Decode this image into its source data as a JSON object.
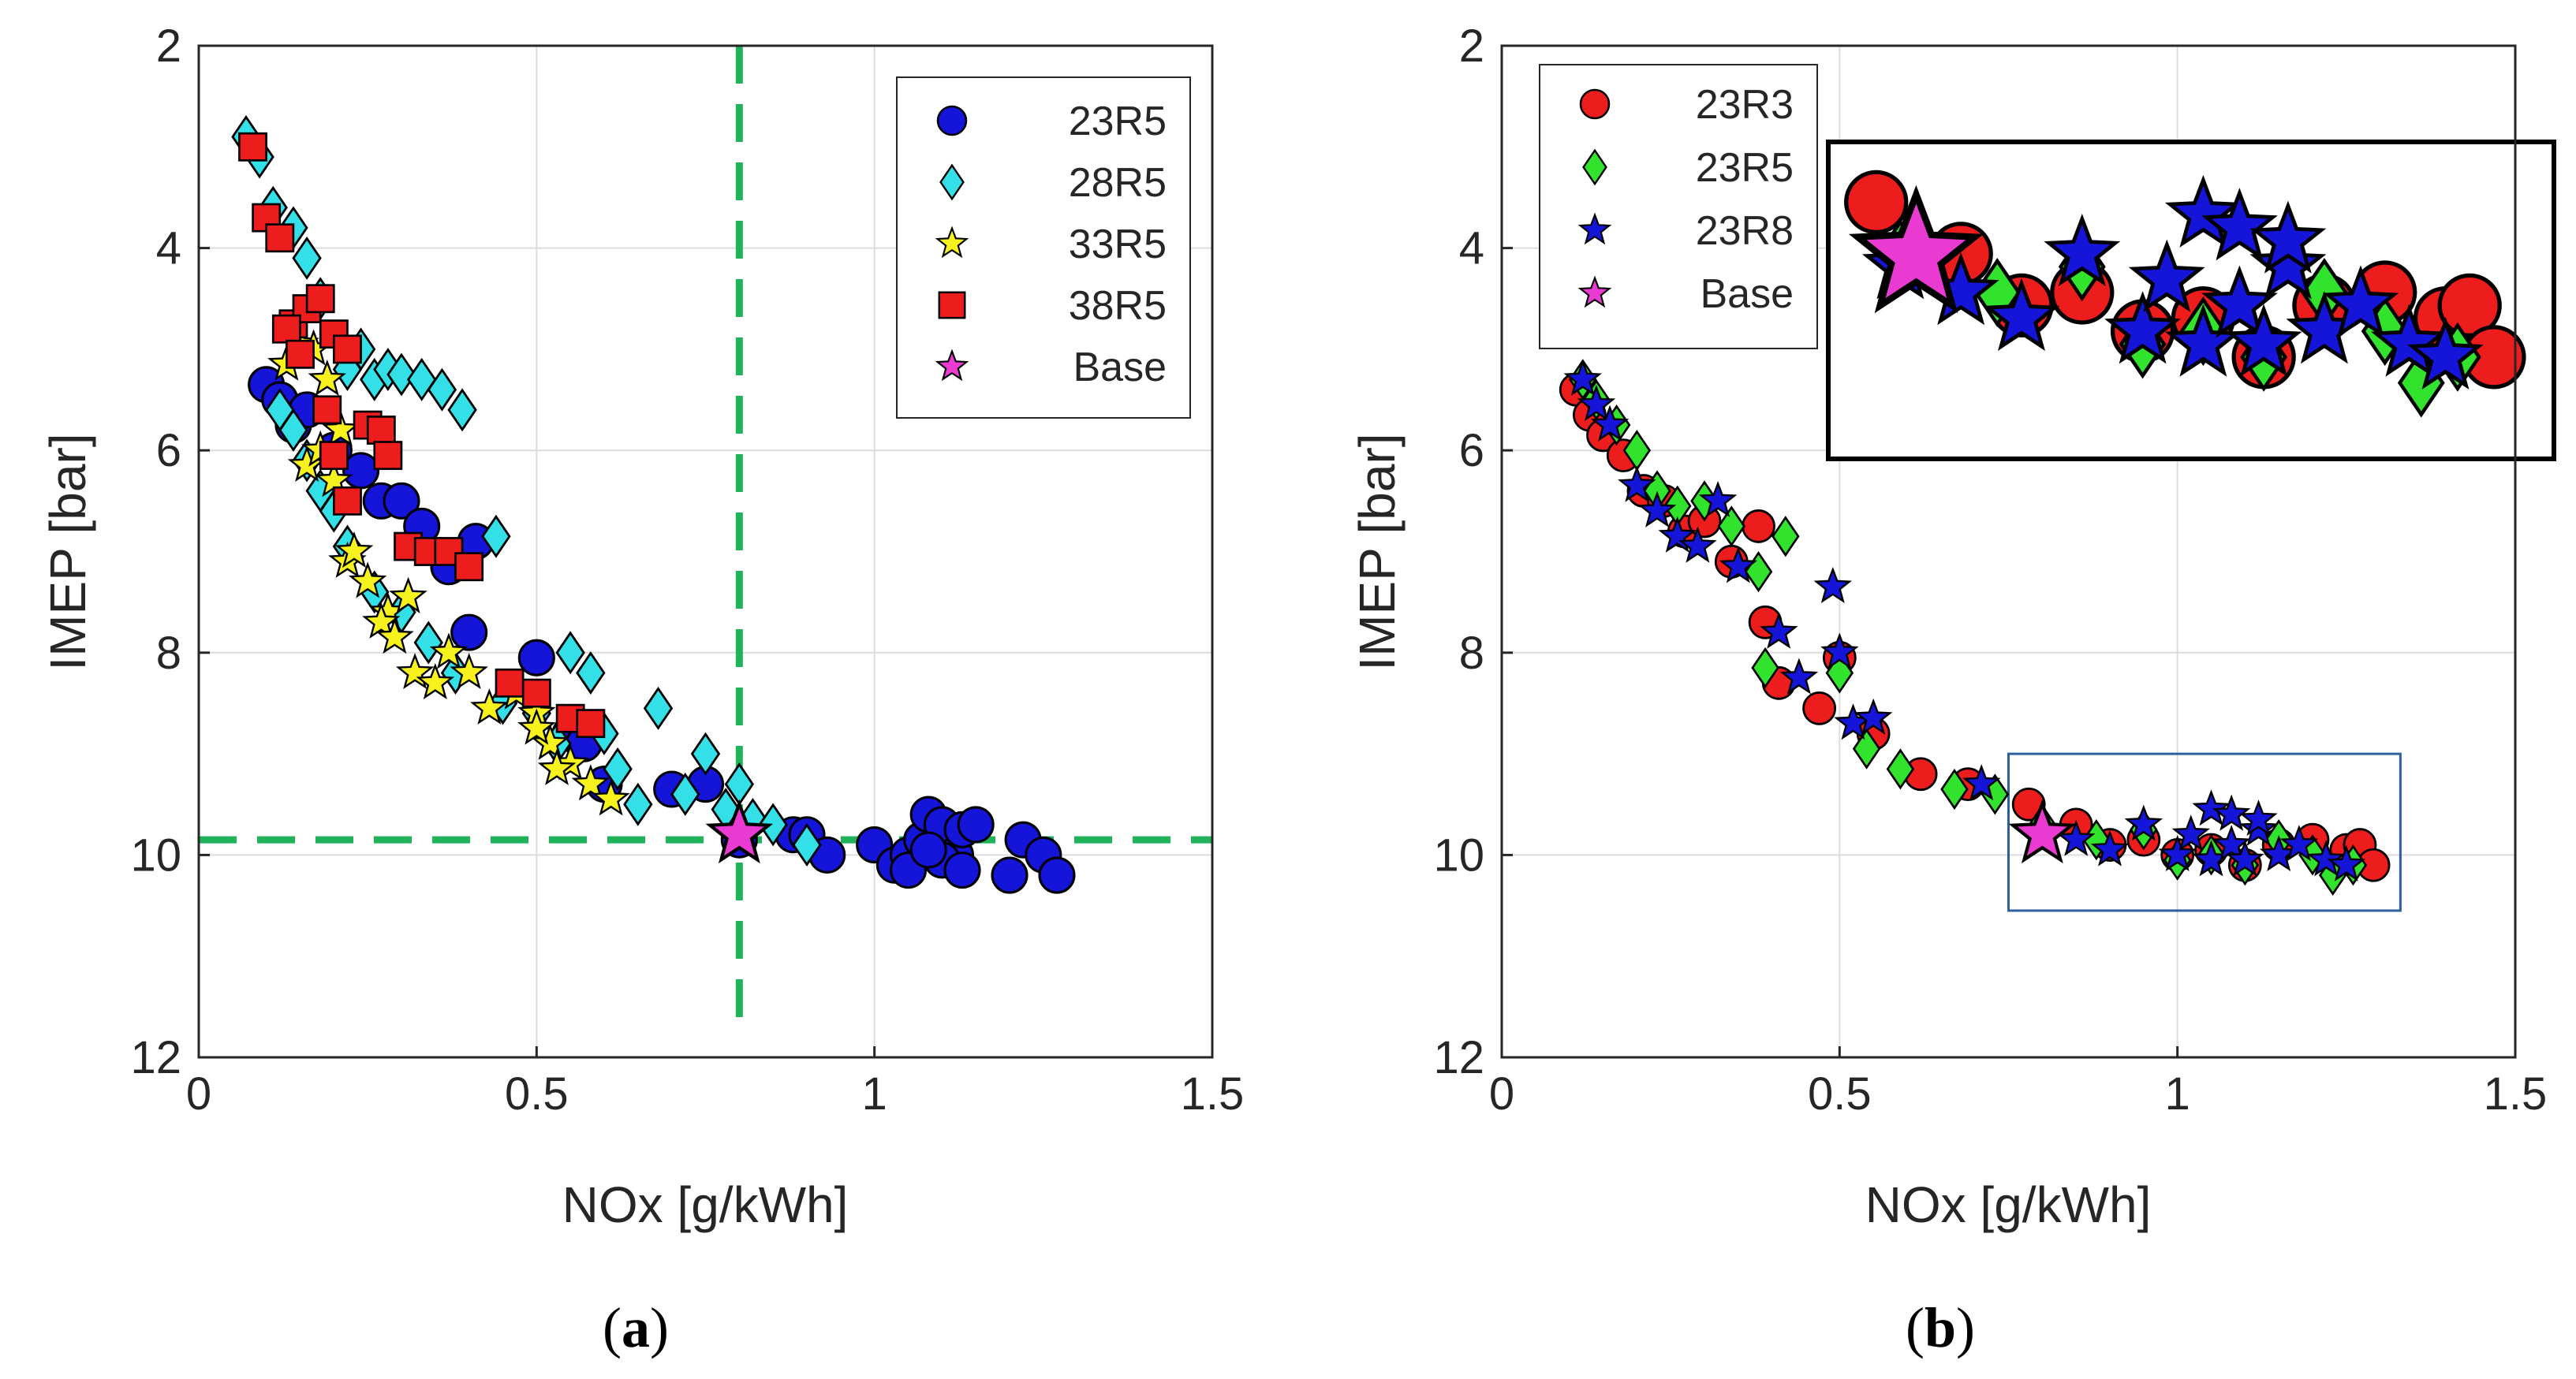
{
  "chart_data": [
    {
      "type": "scatter",
      "panel": "a",
      "caption_open": "(",
      "caption_letter": "a",
      "caption_close": ")",
      "xlabel": "NOx [g/kWh]",
      "ylabel": "IMEP [bar]",
      "xlim": [
        0,
        1.5
      ],
      "ylim": [
        12,
        2
      ],
      "y_reversed": true,
      "xticks": [
        0,
        0.5,
        1,
        1.5
      ],
      "xtick_labels": [
        "0",
        "0.5",
        "1",
        "1.5"
      ],
      "yticks": [
        2,
        4,
        6,
        8,
        10,
        12
      ],
      "ytick_labels": [
        "2",
        "4",
        "6",
        "8",
        "10",
        "12"
      ],
      "grid": true,
      "legend_position": "top-right",
      "reference_lines": {
        "x": 0.8,
        "y": 9.85,
        "color": "#21b35b",
        "style": "dashed"
      },
      "series": [
        {
          "name": "23R5",
          "marker": "circle",
          "color": "#1515d9",
          "x": [
            0.1,
            0.12,
            0.14,
            0.16,
            0.2,
            0.24,
            0.27,
            0.3,
            0.33,
            0.37,
            0.41,
            0.4,
            0.5,
            0.55,
            0.57,
            0.6,
            0.7,
            0.75,
            0.8,
            0.88,
            0.9,
            0.93,
            1.0,
            1.03,
            1.05,
            1.07,
            1.08,
            1.1,
            1.12,
            1.13,
            1.15,
            1.05,
            1.1,
            1.2,
            1.22,
            1.25,
            1.27,
            1.08,
            1.13
          ],
          "y": [
            5.35,
            5.5,
            5.75,
            5.6,
            6.0,
            6.2,
            6.5,
            6.5,
            6.75,
            7.15,
            6.9,
            7.8,
            8.05,
            8.8,
            8.9,
            9.3,
            9.35,
            9.3,
            9.85,
            9.8,
            9.8,
            10.0,
            9.9,
            10.1,
            10.0,
            9.85,
            9.6,
            9.7,
            10.0,
            9.75,
            9.7,
            10.15,
            10.05,
            10.2,
            9.85,
            10.0,
            10.2,
            9.95,
            10.15
          ]
        },
        {
          "name": "28R5",
          "marker": "diamond",
          "color": "#33e0e8",
          "x": [
            0.07,
            0.09,
            0.11,
            0.14,
            0.16,
            0.18,
            0.12,
            0.14,
            0.16,
            0.18,
            0.2,
            0.22,
            0.24,
            0.26,
            0.28,
            0.3,
            0.33,
            0.36,
            0.39,
            0.22,
            0.26,
            0.3,
            0.34,
            0.38,
            0.45,
            0.5,
            0.53,
            0.55,
            0.58,
            0.6,
            0.68,
            0.75,
            0.8,
            0.65,
            0.62,
            0.72,
            0.78,
            0.82,
            0.85,
            0.9,
            0.44
          ],
          "y": [
            2.9,
            3.1,
            3.6,
            3.8,
            4.1,
            4.5,
            5.6,
            5.8,
            6.1,
            6.4,
            6.6,
            5.2,
            5.0,
            5.3,
            5.2,
            5.25,
            5.3,
            5.4,
            5.6,
            6.95,
            7.4,
            7.6,
            7.9,
            8.2,
            8.5,
            8.6,
            8.9,
            8.0,
            8.2,
            8.8,
            8.55,
            9.0,
            9.3,
            9.5,
            9.15,
            9.4,
            9.55,
            9.65,
            9.7,
            9.9,
            6.85
          ]
        },
        {
          "name": "33R5",
          "marker": "star",
          "color": "#f7f21e",
          "x": [
            0.13,
            0.15,
            0.17,
            0.19,
            0.21,
            0.16,
            0.18,
            0.2,
            0.22,
            0.25,
            0.28,
            0.31,
            0.23,
            0.27,
            0.29,
            0.32,
            0.35,
            0.37,
            0.4,
            0.43,
            0.47,
            0.5,
            0.52,
            0.55,
            0.58,
            0.61,
            0.5,
            0.53
          ],
          "y": [
            5.15,
            4.95,
            5.0,
            5.3,
            5.8,
            6.15,
            6.0,
            6.3,
            7.1,
            7.3,
            7.6,
            7.45,
            7.0,
            7.7,
            7.85,
            8.2,
            8.3,
            8.0,
            8.2,
            8.55,
            8.4,
            8.6,
            8.9,
            9.1,
            9.3,
            9.45,
            8.75,
            9.15
          ]
        },
        {
          "name": "38R5",
          "marker": "square",
          "color": "#ee1d1d",
          "x": [
            0.08,
            0.1,
            0.12,
            0.14,
            0.16,
            0.18,
            0.2,
            0.22,
            0.13,
            0.15,
            0.19,
            0.22,
            0.25,
            0.27,
            0.28,
            0.31,
            0.34,
            0.37,
            0.4,
            0.46,
            0.5,
            0.55,
            0.58,
            0.2
          ],
          "y": [
            3.0,
            3.7,
            3.9,
            4.75,
            4.6,
            4.5,
            4.85,
            5.0,
            4.8,
            5.05,
            5.6,
            6.5,
            5.75,
            5.8,
            6.05,
            6.95,
            7.0,
            7.0,
            7.15,
            8.3,
            8.4,
            8.65,
            8.7,
            6.05
          ]
        },
        {
          "name": "Base",
          "marker": "star",
          "color": "#e93ad2",
          "x": [
            0.8
          ],
          "y": [
            9.8
          ]
        }
      ]
    },
    {
      "type": "scatter",
      "panel": "b",
      "caption_open": "(",
      "caption_letter": "b",
      "caption_close": ")",
      "xlabel": "NOx [g/kWh]",
      "ylabel": "IMEP [bar]",
      "xlim": [
        0,
        1.5
      ],
      "ylim": [
        12,
        2
      ],
      "y_reversed": true,
      "xticks": [
        0,
        0.5,
        1,
        1.5
      ],
      "xtick_labels": [
        "0",
        "0.5",
        "1",
        "1.5"
      ],
      "yticks": [
        2,
        4,
        6,
        8,
        10,
        12
      ],
      "ytick_labels": [
        "2",
        "4",
        "6",
        "8",
        "10",
        "12"
      ],
      "grid": true,
      "legend_position": "top-left",
      "zoom_box": {
        "x": [
          0.75,
          1.33
        ],
        "y": [
          9.0,
          10.55
        ],
        "color": "#2c5f9e"
      },
      "inset": {
        "note": "magnified view of zoom box region",
        "color": "#000000"
      },
      "series": [
        {
          "name": "23R3",
          "marker": "circle",
          "color": "#ee1d1d",
          "x": [
            0.11,
            0.13,
            0.15,
            0.18,
            0.21,
            0.24,
            0.27,
            0.3,
            0.34,
            0.38,
            0.39,
            0.41,
            0.47,
            0.5,
            0.55,
            0.62,
            0.69,
            0.78,
            0.85,
            0.9,
            0.95,
            1.0,
            1.05,
            1.1,
            1.15,
            1.2,
            1.25,
            1.27,
            1.29
          ],
          "y": [
            5.4,
            5.65,
            5.85,
            6.05,
            6.4,
            6.5,
            6.8,
            6.7,
            7.1,
            6.75,
            7.7,
            8.3,
            8.55,
            8.05,
            8.8,
            9.2,
            9.3,
            9.5,
            9.7,
            9.9,
            9.85,
            10.0,
            9.95,
            10.1,
            9.9,
            9.85,
            9.95,
            9.9,
            10.1
          ]
        },
        {
          "name": "23R5",
          "marker": "diamond",
          "color": "#32e32e",
          "x": [
            0.12,
            0.14,
            0.17,
            0.2,
            0.23,
            0.26,
            0.3,
            0.34,
            0.38,
            0.42,
            0.39,
            0.5,
            0.54,
            0.59,
            0.67,
            0.73,
            0.8,
            0.88,
            0.95,
            1.0,
            1.05,
            1.1,
            1.15,
            1.2,
            1.23,
            1.26
          ],
          "y": [
            5.3,
            5.5,
            5.75,
            6.0,
            6.4,
            6.55,
            6.5,
            6.75,
            7.2,
            6.85,
            8.15,
            8.2,
            8.95,
            9.15,
            9.35,
            9.4,
            9.7,
            9.85,
            9.75,
            10.05,
            10.0,
            10.1,
            9.85,
            10.0,
            10.2,
            10.1
          ]
        },
        {
          "name": "23R8",
          "marker": "star",
          "color": "#1515d9",
          "x": [
            0.12,
            0.14,
            0.16,
            0.2,
            0.23,
            0.26,
            0.29,
            0.32,
            0.35,
            0.41,
            0.44,
            0.49,
            0.5,
            0.52,
            0.55,
            0.71,
            0.8,
            0.85,
            0.9,
            0.95,
            1.0,
            1.02,
            1.05,
            1.08,
            1.1,
            1.12,
            1.15,
            1.18,
            1.22,
            1.05,
            1.08,
            1.12,
            1.25
          ],
          "y": [
            5.3,
            5.55,
            5.75,
            6.35,
            6.6,
            6.85,
            6.95,
            6.5,
            7.15,
            7.8,
            8.25,
            7.35,
            8.0,
            8.7,
            8.65,
            9.3,
            9.75,
            9.85,
            9.95,
            9.7,
            10.0,
            9.8,
            10.05,
            9.9,
            10.05,
            9.75,
            10.0,
            9.9,
            10.05,
            9.55,
            9.6,
            9.65,
            10.1
          ]
        },
        {
          "name": "Base",
          "marker": "star",
          "color": "#e93ad2",
          "x": [
            0.8
          ],
          "y": [
            9.8
          ]
        }
      ]
    }
  ]
}
